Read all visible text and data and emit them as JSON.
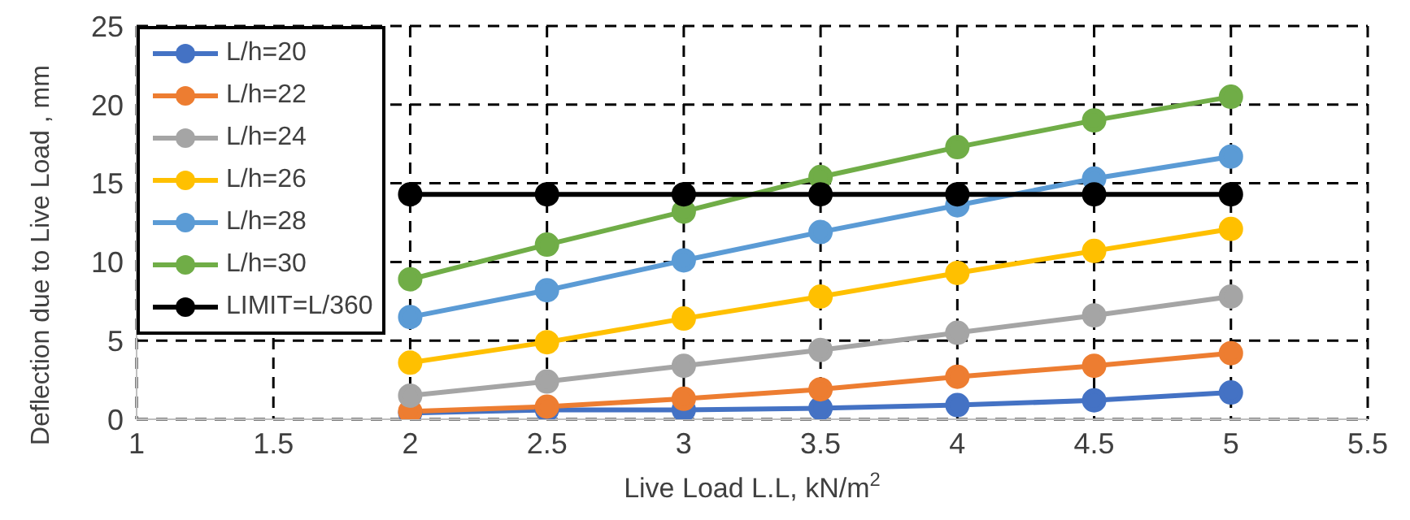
{
  "chart_data": {
    "type": "line",
    "xlabel": "Live Load L.L,  kN/m$^{2}$",
    "ylabel": "Deflection due to Live Load , mm",
    "x": [
      2,
      2.5,
      3,
      3.5,
      4,
      4.5,
      5
    ],
    "series": [
      {
        "name": "L/h=20",
        "color": "#4472c4",
        "values": [
          0.4,
          0.6,
          0.6,
          0.7,
          0.9,
          1.2,
          1.7
        ]
      },
      {
        "name": "L/h=22",
        "color": "#ed7d31",
        "values": [
          0.5,
          0.8,
          1.3,
          1.9,
          2.7,
          3.4,
          4.2
        ]
      },
      {
        "name": "L/h=24",
        "color": "#a5a5a5",
        "values": [
          1.5,
          2.4,
          3.4,
          4.4,
          5.5,
          6.6,
          7.8
        ]
      },
      {
        "name": "L/h=26",
        "color": "#ffc000",
        "values": [
          3.6,
          4.9,
          6.4,
          7.8,
          9.3,
          10.7,
          12.1
        ]
      },
      {
        "name": "L/h=28",
        "color": "#5b9bd5",
        "values": [
          6.5,
          8.2,
          10.1,
          11.9,
          13.6,
          15.3,
          16.7
        ]
      },
      {
        "name": "L/h=30",
        "color": "#70ad47",
        "values": [
          8.9,
          11.1,
          13.2,
          15.4,
          17.3,
          19,
          20.5
        ]
      },
      {
        "name": "LIMIT=L/360",
        "color": "#000000",
        "values": [
          14.3,
          14.3,
          14.3,
          14.3,
          14.3,
          14.3,
          14.3
        ]
      }
    ],
    "xlim": [
      1,
      5.5
    ],
    "xticks": [
      1,
      1.5,
      2,
      2.5,
      3,
      3.5,
      4,
      4.5,
      5,
      5.5
    ],
    "ylim": [
      0,
      25
    ],
    "yticks": [
      0,
      5,
      10,
      15,
      20,
      25
    ],
    "grid": true,
    "legend": "top left",
    "marker": "circle",
    "line_style": "solid"
  }
}
